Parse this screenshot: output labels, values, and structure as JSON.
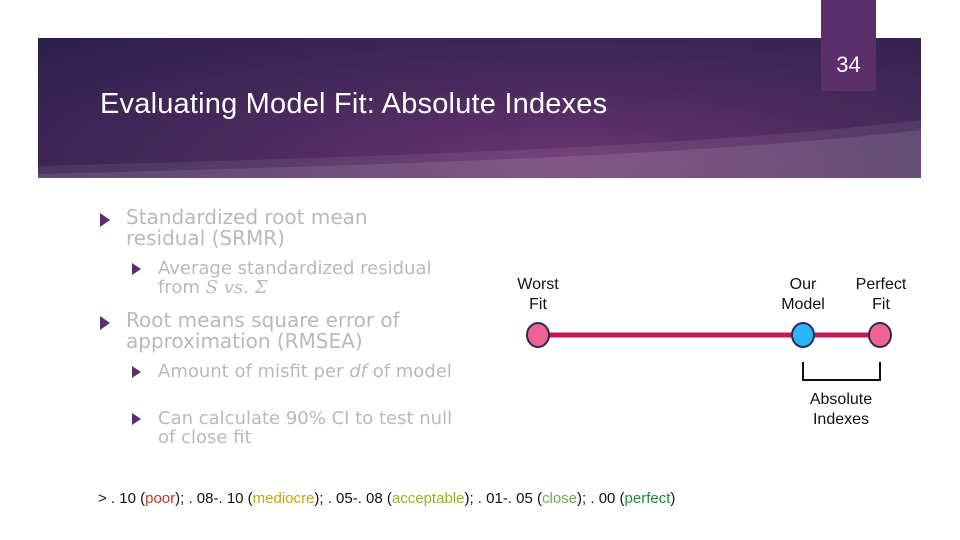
{
  "slide": {
    "title": "Evaluating Model Fit: Absolute Indexes",
    "page_number": "34"
  },
  "bullets": {
    "srmr": "Standardized root mean residual (SRMR)",
    "srmr_sub_prefix": "Average standardized residual from",
    "srmr_sub_math_s": "S",
    "srmr_sub_math_vs": "vs.",
    "srmr_sub_math_sigma": "Σ",
    "rmsea": "Root means square error of approximation (RMSEA)",
    "rmsea_sub1_a": "Amount of misfit per",
    "rmsea_sub1_df": "df",
    "rmsea_sub1_b": "of model",
    "rmsea_sub2": "Can calculate 90% CI to test null of close fit"
  },
  "diagram": {
    "worst_label_1": "Worst",
    "worst_label_2": "Fit",
    "ours_label_1": "Our",
    "ours_label_2": "Model",
    "perfect_label_1": "Perfect",
    "perfect_label_2": "Fit",
    "absolute_label_1": "Absolute",
    "absolute_label_2": "Indexes"
  },
  "footer": {
    "prefix": "> . 10 (",
    "poor": "poor",
    "sep1": "); . 08-. 10 (",
    "mediocre": "mediocre",
    "sep2": "); . 05-. 08 (",
    "acceptable": "acceptable",
    "sep3": "); . 01-. 05 (",
    "close": "close",
    "sep4": "); . 00 (",
    "perfect": "perfect",
    "suffix": ")"
  },
  "colors": {
    "banner": "#4a2a5c",
    "line": "#c2185b",
    "node_pink": "#f06292",
    "node_blue": "#29b6f6",
    "bullet_arrow": "#5c2e6b",
    "poor": "#c0392b",
    "mediocre": "#c9a20f",
    "acceptable": "#9bb21f",
    "close": "#6ab04c",
    "perfect": "#1e8b3a"
  }
}
